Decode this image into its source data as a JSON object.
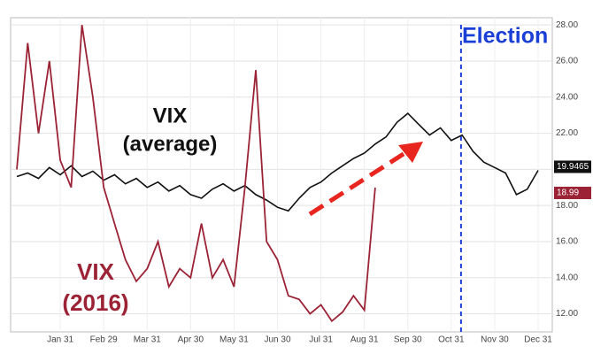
{
  "chart_data": {
    "type": "line",
    "categories": [
      null,
      null,
      null,
      null,
      "Jan 31",
      null,
      null,
      null,
      "Feb 29",
      null,
      null,
      null,
      "Mar 31",
      null,
      null,
      null,
      "Apr 30",
      null,
      null,
      null,
      "May 31",
      null,
      null,
      null,
      "Jun 30",
      null,
      null,
      null,
      "Jul 31",
      null,
      null,
      null,
      "Aug 31",
      null,
      null,
      null,
      "Sep 30",
      null,
      null,
      null,
      "Oct 31",
      null,
      null,
      null,
      "Nov 30",
      null,
      null,
      null,
      "Dec 31"
    ],
    "series": [
      {
        "name": "VIX (average)",
        "color": "#111111",
        "values": [
          19.6,
          19.8,
          19.5,
          20.1,
          19.7,
          20.2,
          19.6,
          19.9,
          19.4,
          19.7,
          19.2,
          19.5,
          19.0,
          19.3,
          18.8,
          19.1,
          18.6,
          18.4,
          18.9,
          19.2,
          18.8,
          19.1,
          18.6,
          18.3,
          17.9,
          17.7,
          18.4,
          19.0,
          19.3,
          19.8,
          20.2,
          20.6,
          20.9,
          21.4,
          21.8,
          22.6,
          23.1,
          22.5,
          21.9,
          22.3,
          21.6,
          21.9,
          21.0,
          20.4,
          20.1,
          19.8,
          18.6,
          18.9,
          19.9465
        ]
      },
      {
        "name": "VIX (2016)",
        "color": "#9b2335",
        "values": [
          20,
          27,
          22,
          26,
          20.5,
          19,
          28,
          24,
          19,
          17,
          15,
          13.8,
          14.5,
          16,
          13.5,
          14.5,
          14,
          17,
          14,
          15,
          13.5,
          19,
          25.5,
          16,
          15,
          13,
          12.8,
          12,
          12.5,
          11.6,
          12.1,
          13,
          12.2,
          18.99,
          null,
          null,
          null,
          null,
          null,
          null,
          null,
          null,
          null,
          null,
          null,
          null,
          null,
          null,
          null
        ]
      }
    ],
    "ylim": [
      11,
      28.4
    ],
    "yticks": [
      {
        "value": 12,
        "label": "12.00"
      },
      {
        "value": 14,
        "label": "14.00"
      },
      {
        "value": 16,
        "label": "16.00"
      },
      {
        "value": 18,
        "label": "18.00"
      },
      {
        "value": 20,
        "label": "20.00"
      },
      {
        "value": 22,
        "label": "22.00"
      },
      {
        "value": 24,
        "label": "24.00"
      },
      {
        "value": 26,
        "label": "26.00"
      },
      {
        "value": 28,
        "label": "28.00"
      }
    ],
    "grid": true,
    "annotations": {
      "average": [
        "VIX",
        "(average)"
      ],
      "year2016": [
        "VIX",
        "(2016)"
      ],
      "election": "Election"
    },
    "election_x": 40.9
  }
}
